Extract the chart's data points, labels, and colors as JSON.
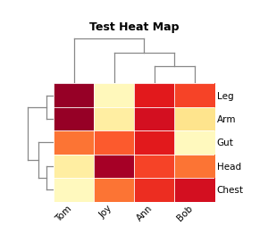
{
  "title": "Test Heat Map",
  "col_labels": [
    "Tom",
    "Joy",
    "Ann",
    "Bob"
  ],
  "row_labels": [
    "Leg",
    "Arm",
    "Gut",
    "Head",
    "Chest"
  ],
  "heatmap": [
    [
      0.95,
      0.05,
      0.75,
      0.65
    ],
    [
      0.95,
      0.12,
      0.8,
      0.18
    ],
    [
      0.55,
      0.6,
      0.75,
      0.04
    ],
    [
      0.12,
      0.92,
      0.65,
      0.55
    ],
    [
      0.04,
      0.55,
      0.7,
      0.8
    ]
  ],
  "cmap": "YlOrRd",
  "bg_color": "#ffffff",
  "dendro_color": "#888888",
  "title_fontsize": 9,
  "label_fontsize": 7.5
}
